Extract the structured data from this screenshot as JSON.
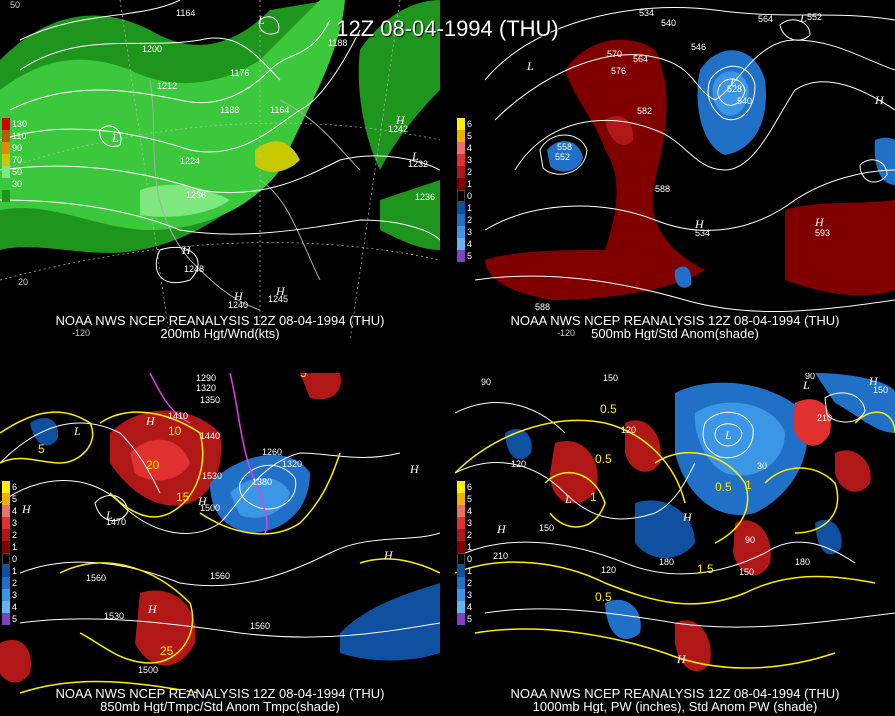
{
  "title": "12Z 08-04-1994 (THU)",
  "panels": [
    {
      "caption1": "NOAA NWS NCEP REANALYSIS 12Z 08-04-1994 (THU)",
      "caption2": "200mb Hgt/Wnd(kts)",
      "colorbar": [
        {
          "label": "130",
          "color": "#d40000"
        },
        {
          "label": "110",
          "color": "#e08a00"
        },
        {
          "label": "90",
          "color": "#c8c800"
        },
        {
          "label": "70",
          "color": "#7ee87e"
        },
        {
          "label": "50",
          "color": "#3cc83c"
        },
        {
          "label": "30",
          "color": "#1e961e"
        }
      ],
      "contour_labels": [
        "1164",
        "1188",
        "1200",
        "1212",
        "1176",
        "1188",
        "1164",
        "1224",
        "1236",
        "1236",
        "1248",
        "1232",
        "1242",
        "1245",
        "1240"
      ],
      "degree_labels": [
        "50",
        "20",
        "-120",
        "-100",
        "-80"
      ]
    },
    {
      "caption1": "NOAA NWS NCEP REANALYSIS 12Z 08-04-1994 (THU)",
      "caption2": "500mb Hgt/Std Anom(shade)",
      "colorbar": [
        {
          "label": "6",
          "color": "#ffee00"
        },
        {
          "label": "5",
          "color": "#f0b000"
        },
        {
          "label": "4",
          "color": "#e87070"
        },
        {
          "label": "3",
          "color": "#e03030"
        },
        {
          "label": "2",
          "color": "#b01818"
        },
        {
          "label": "1",
          "color": "#800000"
        },
        {
          "label": "0",
          "color": "#000000"
        },
        {
          "label": "1",
          "color": "#1050a0"
        },
        {
          "label": "2",
          "color": "#2070c8"
        },
        {
          "label": "3",
          "color": "#3c96e6"
        },
        {
          "label": "4",
          "color": "#64b4f0"
        },
        {
          "label": "5",
          "color": "#8040c0"
        }
      ],
      "contour_labels": [
        "534",
        "540",
        "564",
        "552",
        "570",
        "576",
        "564",
        "546",
        "582",
        "558",
        "528",
        "540",
        "552",
        "588",
        "588",
        "534",
        "593"
      ],
      "degree_labels": [
        "-120"
      ]
    },
    {
      "caption1": "NOAA NWS NCEP REANALYSIS 12Z 08-04-1994 (THU)",
      "caption2": "850mb Hgt/Tmpc/Std Anom Tmpc(shade)",
      "colorbar": [
        {
          "label": "6",
          "color": "#ffee00"
        },
        {
          "label": "5",
          "color": "#f0b000"
        },
        {
          "label": "4",
          "color": "#e87070"
        },
        {
          "label": "3",
          "color": "#e03030"
        },
        {
          "label": "2",
          "color": "#b01818"
        },
        {
          "label": "1",
          "color": "#800000"
        },
        {
          "label": "0",
          "color": "#000000"
        },
        {
          "label": "1",
          "color": "#1050a0"
        },
        {
          "label": "2",
          "color": "#2070c8"
        },
        {
          "label": "3",
          "color": "#3c96e6"
        },
        {
          "label": "4",
          "color": "#64b4f0"
        },
        {
          "label": "5",
          "color": "#8040c0"
        }
      ],
      "contour_labels": [
        "1290",
        "1320",
        "1350",
        "1410",
        "1440",
        "1470",
        "1500",
        "1530",
        "1560",
        "1560",
        "1530",
        "1500",
        "1560",
        "1320",
        "1380",
        "1260"
      ],
      "temp_labels": [
        "5",
        "10",
        "15",
        "20",
        "25",
        "5"
      ]
    },
    {
      "caption1": "NOAA NWS NCEP REANALYSIS 12Z 08-04-1994 (THU)",
      "caption2": "1000mb Hgt, PW (inches), Std Anom PW (shade)",
      "colorbar": [
        {
          "label": "6",
          "color": "#ffee00"
        },
        {
          "label": "5",
          "color": "#f0b000"
        },
        {
          "label": "4",
          "color": "#e87070"
        },
        {
          "label": "3",
          "color": "#e03030"
        },
        {
          "label": "2",
          "color": "#b01818"
        },
        {
          "label": "1",
          "color": "#800000"
        },
        {
          "label": "0",
          "color": "#000000"
        },
        {
          "label": "1",
          "color": "#1050a0"
        },
        {
          "label": "2",
          "color": "#2070c8"
        },
        {
          "label": "3",
          "color": "#3c96e6"
        },
        {
          "label": "4",
          "color": "#64b4f0"
        },
        {
          "label": "5",
          "color": "#8040c0"
        }
      ],
      "contour_labels": [
        "90",
        "90",
        "150",
        "120",
        "120",
        "150",
        "210",
        "180",
        "180",
        "150",
        "120",
        "90",
        "210",
        "30",
        "150"
      ],
      "pw_labels": [
        "0.5",
        "0.5",
        "1",
        "0.5",
        "1.5",
        "0.5",
        "1"
      ]
    }
  ]
}
